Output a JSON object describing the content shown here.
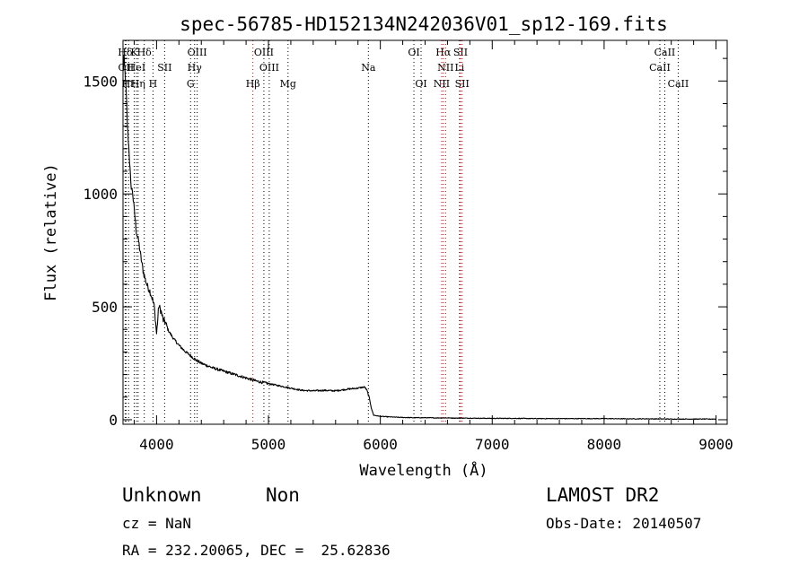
{
  "chart_data": {
    "type": "line",
    "title": "spec-56785-HD152134N242036V01_sp12-169.fits",
    "xlabel": "Wavelength (Å)",
    "ylabel": "Flux (relative)",
    "xlim": [
      3700,
      9100
    ],
    "ylim": [
      -20,
      1680
    ],
    "xticks": [
      4000,
      5000,
      6000,
      7000,
      8000,
      9000
    ],
    "yticks": [
      0,
      500,
      1000,
      1500
    ],
    "xtick_labels": [
      "4000",
      "5000",
      "6000",
      "7000",
      "8000",
      "9000"
    ],
    "ytick_labels": [
      "0",
      "500",
      "1000",
      "1500"
    ],
    "grid": false,
    "series": [
      {
        "x": [
          3700,
          3710,
          3725,
          3740,
          3755,
          3770,
          3785,
          3800,
          3820,
          3840,
          3860,
          3880,
          3900,
          3920,
          3940,
          3960,
          3980,
          4000,
          4020,
          4040,
          4060,
          4080,
          4100,
          4150,
          4200,
          4250,
          4300,
          4350,
          4400,
          4500,
          4600,
          4700,
          4800,
          4900,
          5000,
          5100,
          5200,
          5300,
          5400,
          5500,
          5600,
          5700,
          5800,
          5860,
          5880,
          5900,
          5920,
          5940,
          6000,
          6100,
          6200,
          6300,
          6400,
          6500,
          6600,
          6700,
          6800,
          7000,
          7200,
          7400,
          7600,
          7800,
          8000,
          8200,
          8400,
          8600,
          8800,
          9000
        ],
        "y": [
          1540,
          1600,
          1490,
          1300,
          1180,
          1040,
          1010,
          930,
          830,
          790,
          720,
          660,
          620,
          590,
          570,
          540,
          500,
          380,
          505,
          480,
          440,
          430,
          400,
          360,
          330,
          305,
          285,
          265,
          250,
          230,
          215,
          200,
          185,
          170,
          160,
          150,
          140,
          130,
          128,
          130,
          128,
          135,
          140,
          145,
          130,
          100,
          50,
          20,
          15,
          12,
          10,
          9,
          9,
          8,
          8,
          7,
          7,
          6,
          6,
          5,
          5,
          5,
          5,
          4,
          4,
          3,
          3,
          3
        ]
      }
    ],
    "line_markers": [
      {
        "label": "Hδ",
        "x": 3719,
        "color": "#000000",
        "row": 1
      },
      {
        "label": "K",
        "x": 3800,
        "color": "#000000",
        "row": 1
      },
      {
        "label": "Hδ",
        "x": 3890,
        "color": "#000000",
        "row": 1
      },
      {
        "label": "OIII",
        "x": 4363,
        "color": "#000000",
        "row": 1
      },
      {
        "label": "OIII",
        "x": 4959,
        "color": "#000000",
        "row": 1
      },
      {
        "label": "OI",
        "x": 6300,
        "color": "#000000",
        "row": 1
      },
      {
        "label": "Hα",
        "x": 6563,
        "color": "#cc0000",
        "row": 1
      },
      {
        "label": "SII",
        "x": 6717,
        "color": "#cc0000",
        "row": 1
      },
      {
        "label": "CaII",
        "x": 8542,
        "color": "#000000",
        "row": 1
      },
      {
        "label": "OII",
        "x": 3727,
        "color": "#000000",
        "row": 2
      },
      {
        "label": "HeI",
        "x": 3820,
        "color": "#000000",
        "row": 2
      },
      {
        "label": "SII",
        "x": 4072,
        "color": "#000000",
        "row": 2
      },
      {
        "label": "Hγ",
        "x": 4340,
        "color": "#000000",
        "row": 2
      },
      {
        "label": "OIII",
        "x": 5007,
        "color": "#000000",
        "row": 2
      },
      {
        "label": "Na",
        "x": 5893,
        "color": "#000000",
        "row": 2
      },
      {
        "label": "NII",
        "x": 6583,
        "color": "#cc0000",
        "row": 2
      },
      {
        "label": "Li",
        "x": 6708,
        "color": "#000000",
        "row": 2
      },
      {
        "label": "CaII",
        "x": 8498,
        "color": "#000000",
        "row": 2
      },
      {
        "label": "Hε",
        "x": 3750,
        "color": "#000000",
        "row": 3
      },
      {
        "label": "Hη",
        "x": 3835,
        "color": "#000000",
        "row": 3
      },
      {
        "label": "H",
        "x": 3968,
        "color": "#000000",
        "row": 3
      },
      {
        "label": "G",
        "x": 4304,
        "color": "#000000",
        "row": 3
      },
      {
        "label": "Hβ",
        "x": 4861,
        "color": "#cc0000",
        "row": 3
      },
      {
        "label": "Mg",
        "x": 5175,
        "color": "#000000",
        "row": 3
      },
      {
        "label": "OI",
        "x": 6364,
        "color": "#000000",
        "row": 3
      },
      {
        "label": "NII",
        "x": 6548,
        "color": "#cc0000",
        "row": 3
      },
      {
        "label": "SII",
        "x": 6731,
        "color": "#cc0000",
        "row": 3
      },
      {
        "label": "CaII",
        "x": 8662,
        "color": "#000000",
        "row": 3
      }
    ]
  },
  "info": {
    "object_type": "Unknown",
    "subclass": "Non",
    "survey": "LAMOST DR2",
    "cz": "cz = NaN",
    "obs_date": "Obs-Date: 20140507",
    "coords": "RA = 232.20065, DEC =  25.62836"
  }
}
